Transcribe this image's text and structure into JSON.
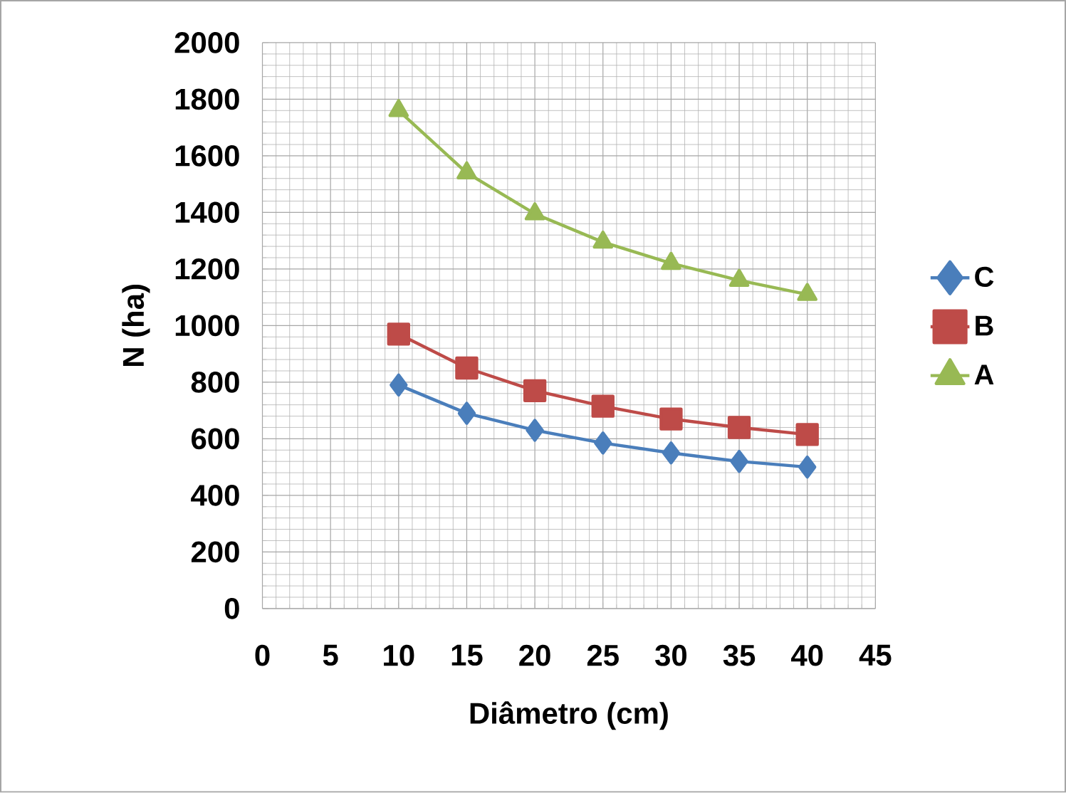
{
  "chart_data": {
    "type": "line",
    "xlabel": "Diâmetro (cm)",
    "ylabel": "N (ha)",
    "x": [
      10,
      15,
      20,
      25,
      30,
      35,
      40
    ],
    "series": [
      {
        "name": "C",
        "color": "#4a7ebb",
        "marker": "diamond",
        "values": [
          790,
          690,
          630,
          585,
          550,
          520,
          500
        ]
      },
      {
        "name": "B",
        "color": "#be4b48",
        "marker": "square",
        "values": [
          970,
          850,
          770,
          715,
          670,
          640,
          615
        ]
      },
      {
        "name": "A",
        "color": "#98b954",
        "marker": "triangle",
        "values": [
          1760,
          1540,
          1395,
          1295,
          1220,
          1160,
          1110
        ]
      }
    ],
    "xlim": [
      0,
      45
    ],
    "xticks": [
      0,
      5,
      10,
      15,
      20,
      25,
      30,
      35,
      40,
      45
    ],
    "ylim": [
      0,
      2000
    ],
    "yticks": [
      0,
      200,
      400,
      600,
      800,
      1000,
      1200,
      1400,
      1600,
      1800,
      2000
    ],
    "grid": true,
    "legend": "right"
  }
}
